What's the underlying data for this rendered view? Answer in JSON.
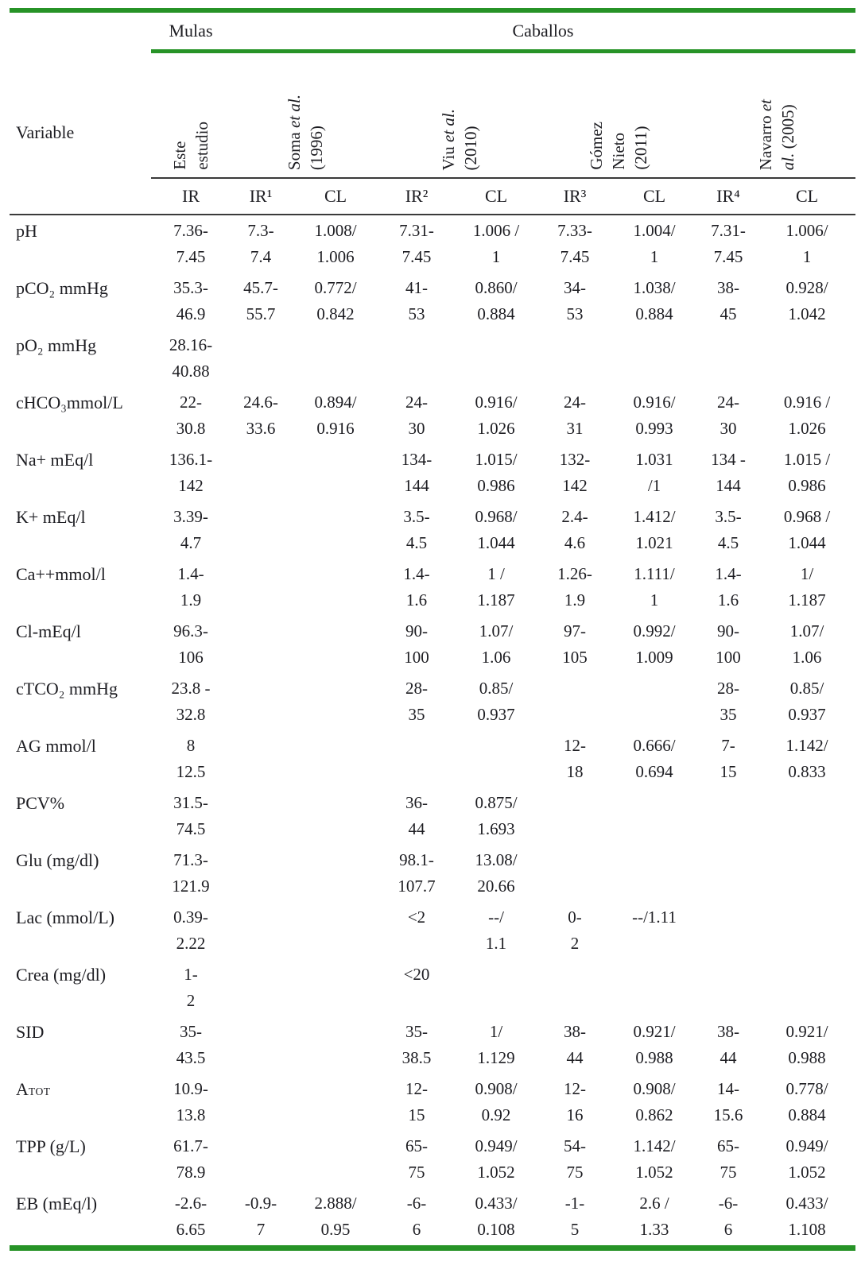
{
  "table": {
    "group_headers": {
      "mulas": "Mulas",
      "caballos": "Caballos"
    },
    "variable_header": "Variable",
    "studies": [
      {
        "id": "este-estudio",
        "cols": 1,
        "lines": [
          [
            {
              "t": "Este"
            }
          ],
          [
            {
              "t": "estudio"
            }
          ]
        ]
      },
      {
        "id": "soma-1996",
        "cols": 2,
        "lines": [
          [
            {
              "t": "Soma "
            },
            {
              "t": "et al.",
              "i": true
            }
          ],
          [
            {
              "t": "(1996)"
            }
          ]
        ]
      },
      {
        "id": "viu-2010",
        "cols": 2,
        "lines": [
          [
            {
              "t": "Viu "
            },
            {
              "t": "et al.",
              "i": true
            }
          ],
          [
            {
              "t": "(2010)"
            }
          ]
        ]
      },
      {
        "id": "gomez-2011",
        "cols": 2,
        "lines": [
          [
            {
              "t": "Gómez"
            }
          ],
          [
            {
              "t": "Nieto"
            }
          ],
          [
            {
              "t": "(2011)"
            }
          ]
        ]
      },
      {
        "id": "navarro-2005",
        "cols": 2,
        "lines": [
          [
            {
              "t": "Navarro "
            },
            {
              "t": "et",
              "i": true
            }
          ],
          [
            {
              "t": "al.",
              "i": true
            },
            {
              "t": " (2005)"
            }
          ]
        ]
      }
    ],
    "col_headers": [
      "IR",
      "IR¹",
      "CL",
      "IR²",
      "CL",
      "IR³",
      "CL",
      "IR⁴",
      "CL"
    ],
    "rows": [
      {
        "variable": "pH",
        "cells": [
          [
            "7.36-",
            "7.45"
          ],
          [
            "7.3-",
            "7.4"
          ],
          [
            "1.008/",
            "1.006"
          ],
          [
            "7.31-",
            "7.45"
          ],
          [
            "1.006 /",
            "1"
          ],
          [
            "7.33-",
            "7.45"
          ],
          [
            "1.004/",
            "1"
          ],
          [
            "7.31-",
            "7.45"
          ],
          [
            "1.006/",
            "1"
          ]
        ]
      },
      {
        "variable": "pCO₂ mmHg",
        "cells": [
          [
            "35.3-",
            "46.9"
          ],
          [
            "45.7-",
            "55.7"
          ],
          [
            "0.772/",
            "0.842"
          ],
          [
            "41-",
            "53"
          ],
          [
            "0.860/",
            "0.884"
          ],
          [
            "34-",
            "53"
          ],
          [
            "1.038/",
            "0.884"
          ],
          [
            "38-",
            "45"
          ],
          [
            "0.928/",
            "1.042"
          ]
        ]
      },
      {
        "variable": "pO₂ mmHg",
        "cells": [
          [
            "28.16-",
            "40.88"
          ],
          null,
          null,
          null,
          null,
          null,
          null,
          null,
          null
        ]
      },
      {
        "variable": "cHCO₃mmol/L",
        "cells": [
          [
            "22-",
            "30.8"
          ],
          [
            "24.6-",
            "33.6"
          ],
          [
            "0.894/",
            "0.916"
          ],
          [
            "24-",
            "30"
          ],
          [
            "0.916/",
            "1.026"
          ],
          [
            "24-",
            "31"
          ],
          [
            "0.916/",
            "0.993"
          ],
          [
            "24-",
            "30"
          ],
          [
            "0.916 /",
            "1.026"
          ]
        ]
      },
      {
        "variable": "Na+ mEq/l",
        "cells": [
          [
            "136.1-",
            "142"
          ],
          null,
          null,
          [
            "134-",
            "144"
          ],
          [
            "1.015/",
            "0.986"
          ],
          [
            "132-",
            "142"
          ],
          [
            "1.031",
            "/1"
          ],
          [
            "134 -",
            "144"
          ],
          [
            "1.015 /",
            "0.986"
          ]
        ]
      },
      {
        "variable": "K+ mEq/l",
        "cells": [
          [
            "3.39-",
            "4.7"
          ],
          null,
          null,
          [
            "3.5-",
            "4.5"
          ],
          [
            "0.968/",
            "1.044"
          ],
          [
            "2.4-",
            "4.6"
          ],
          [
            "1.412/",
            "1.021"
          ],
          [
            "3.5-",
            "4.5"
          ],
          [
            "0.968 /",
            "1.044"
          ]
        ]
      },
      {
        "variable": "Ca++mmol/l",
        "cells": [
          [
            "1.4-",
            "1.9"
          ],
          null,
          null,
          [
            "1.4-",
            "1.6"
          ],
          [
            "1 /",
            "1.187"
          ],
          [
            "1.26-",
            "1.9"
          ],
          [
            "1.111/",
            "1"
          ],
          [
            "1.4-",
            "1.6"
          ],
          [
            "1/",
            "1.187"
          ]
        ]
      },
      {
        "variable": "Cl-mEq/l",
        "cells": [
          [
            "96.3-",
            "106"
          ],
          null,
          null,
          [
            "90-",
            "100"
          ],
          [
            "1.07/",
            "1.06"
          ],
          [
            "97-",
            "105"
          ],
          [
            "0.992/",
            "1.009"
          ],
          [
            "90-",
            "100"
          ],
          [
            "1.07/",
            "1.06"
          ]
        ]
      },
      {
        "variable": "cTCO₂ mmHg",
        "cells": [
          [
            "23.8 -",
            "32.8"
          ],
          null,
          null,
          [
            "28-",
            "35"
          ],
          [
            "0.85/",
            "0.937"
          ],
          null,
          null,
          [
            "28-",
            "35"
          ],
          [
            "0.85/",
            "0.937"
          ]
        ]
      },
      {
        "variable": "AG mmol/l",
        "cells": [
          [
            "8",
            "12.5"
          ],
          null,
          null,
          null,
          null,
          [
            "12-",
            "18"
          ],
          [
            "0.666/",
            "0.694"
          ],
          [
            "7-",
            "15"
          ],
          [
            "1.142/",
            "0.833"
          ]
        ]
      },
      {
        "variable": "PCV%",
        "cells": [
          [
            "31.5-",
            "74.5"
          ],
          null,
          null,
          [
            "36-",
            "44"
          ],
          [
            "0.875/",
            "1.693"
          ],
          null,
          null,
          null,
          null
        ]
      },
      {
        "variable": "Glu (mg/dl)",
        "cells": [
          [
            "71.3-",
            "121.9"
          ],
          null,
          null,
          [
            "98.1-",
            "107.7"
          ],
          [
            "13.08/",
            "20.66"
          ],
          null,
          null,
          null,
          null
        ]
      },
      {
        "variable": "Lac (mmol/L)",
        "cells": [
          [
            "0.39-",
            "2.22"
          ],
          null,
          null,
          [
            "<2",
            ""
          ],
          [
            "--/",
            "1.1"
          ],
          [
            "0-",
            "2"
          ],
          [
            "--/1.11",
            ""
          ],
          null,
          null
        ]
      },
      {
        "variable": "Crea (mg/dl)",
        "cells": [
          [
            "1-",
            "2"
          ],
          null,
          null,
          [
            "<20",
            ""
          ],
          null,
          null,
          null,
          null,
          null
        ]
      },
      {
        "variable": "SID",
        "cells": [
          [
            "35-",
            "43.5"
          ],
          null,
          null,
          [
            "35-",
            "38.5"
          ],
          [
            "1/",
            "1.129"
          ],
          [
            "38-",
            "44"
          ],
          [
            "0.921/",
            "0.988"
          ],
          [
            "38-",
            "44"
          ],
          [
            "0.921/",
            "0.988"
          ]
        ]
      },
      {
        "variable": "A",
        "variable_sub": "TOT",
        "cells": [
          [
            "10.9-",
            "13.8"
          ],
          null,
          null,
          [
            "12-",
            "15"
          ],
          [
            "0.908/",
            "0.92"
          ],
          [
            "12-",
            "16"
          ],
          [
            "0.908/",
            "0.862"
          ],
          [
            "14-",
            "15.6"
          ],
          [
            "0.778/",
            "0.884"
          ]
        ]
      },
      {
        "variable": "TPP (g/L)",
        "cells": [
          [
            "61.7-",
            "78.9"
          ],
          null,
          null,
          [
            "65-",
            "75"
          ],
          [
            "0.949/",
            "1.052"
          ],
          [
            "54-",
            "75"
          ],
          [
            "1.142/",
            "1.052"
          ],
          [
            "65-",
            "75"
          ],
          [
            "0.949/",
            "1.052"
          ]
        ]
      },
      {
        "variable": "EB (mEq/l)",
        "cells": [
          [
            "-2.6-",
            "6.65"
          ],
          [
            "-0.9-",
            "7"
          ],
          [
            "2.888/",
            "0.95"
          ],
          [
            "-6-",
            "6"
          ],
          [
            "0.433/",
            "0.108"
          ],
          [
            "-1-",
            "5"
          ],
          [
            "2.6 /",
            "1.33"
          ],
          [
            "-6-",
            "6"
          ],
          [
            "0.433/",
            "1.108"
          ]
        ]
      }
    ],
    "colors": {
      "accent_green": "#279327",
      "text": "#1d1d22"
    }
  }
}
